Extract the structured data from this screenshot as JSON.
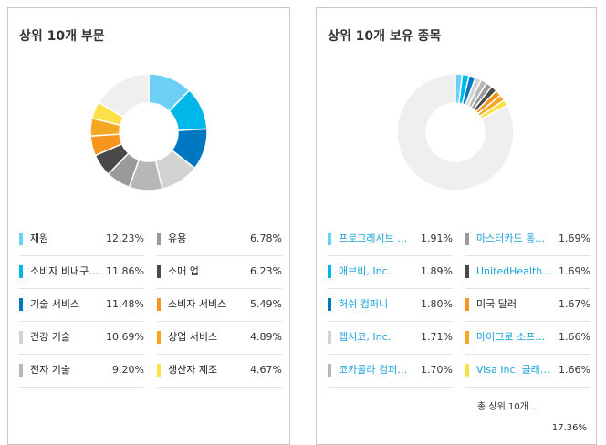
{
  "sectors": {
    "title": "상위 10개 부문",
    "chart_data": {
      "type": "pie",
      "categories": [
        "재원",
        "소비자 비내구재",
        "기술 서비스",
        "건강 기술",
        "전자 기술",
        "유용",
        "소매 업",
        "소비자 서비스",
        "상업 서비스",
        "생산자 제조"
      ],
      "values": [
        12.23,
        11.86,
        11.48,
        10.69,
        9.2,
        6.78,
        6.23,
        5.49,
        4.89,
        4.67
      ],
      "remainder": 16.48
    },
    "colors": [
      "#6ccff6",
      "#00b7ea",
      "#0078c1",
      "#d3d3d3",
      "#b7b7b7",
      "#9a9a9a",
      "#4a4a4a",
      "#f7941d",
      "#f5a623",
      "#fde047"
    ],
    "rest_color": "#efefef",
    "items": [
      {
        "label": "재원",
        "value": "12.23%",
        "color": "#6ccff6"
      },
      {
        "label": "소비자 비내구…",
        "value": "11.86%",
        "color": "#00b7ea"
      },
      {
        "label": "기술 서비스",
        "value": "11.48%",
        "color": "#0078c1"
      },
      {
        "label": "건강 기술",
        "value": "10.69%",
        "color": "#d3d3d3"
      },
      {
        "label": "전자 기술",
        "value": "9.20%",
        "color": "#b7b7b7"
      },
      {
        "label": "유용",
        "value": "6.78%",
        "color": "#9a9a9a"
      },
      {
        "label": "소매 업",
        "value": "6.23%",
        "color": "#4a4a4a"
      },
      {
        "label": "소비자 서비스",
        "value": "5.49%",
        "color": "#f7941d"
      },
      {
        "label": "상업 서비스",
        "value": "4.89%",
        "color": "#f5a623"
      },
      {
        "label": "생산자 제조",
        "value": "4.67%",
        "color": "#fde047"
      }
    ]
  },
  "holdings": {
    "title": "상위 10개 보유 종목",
    "chart_data": {
      "type": "pie",
      "categories": [
        "프로그레시브 …",
        "애브비, Inc.",
        "허쉬 컴퍼니",
        "펩시코, Inc.",
        "코카콜라 컴퍼…",
        "마스터카드 통…",
        "UnitedHealth…",
        "미국 달러",
        "마이크로 소프…",
        "Visa Inc. 클래…"
      ],
      "values": [
        1.91,
        1.89,
        1.8,
        1.71,
        1.7,
        1.69,
        1.69,
        1.67,
        1.66,
        1.66
      ],
      "remainder": 82.64
    },
    "colors": [
      "#6ccff6",
      "#00b7ea",
      "#0078c1",
      "#d3d3d3",
      "#b7b7b7",
      "#9a9a9a",
      "#4a4a4a",
      "#f7941d",
      "#f5a623",
      "#fde047"
    ],
    "rest_color": "#efefef",
    "items": [
      {
        "label": "프로그레시브 …",
        "value": "1.91%",
        "color": "#6ccff6",
        "link": true
      },
      {
        "label": "애브비, Inc.",
        "value": "1.89%",
        "color": "#00b7ea",
        "link": true
      },
      {
        "label": "허쉬 컴퍼니",
        "value": "1.80%",
        "color": "#0078c1",
        "link": true
      },
      {
        "label": "펩시코, Inc.",
        "value": "1.71%",
        "color": "#d3d3d3",
        "link": true
      },
      {
        "label": "코카콜라 컴퍼…",
        "value": "1.70%",
        "color": "#b7b7b7",
        "link": true
      },
      {
        "label": "마스터카드 통…",
        "value": "1.69%",
        "color": "#9a9a9a",
        "link": true
      },
      {
        "label": "UnitedHealth…",
        "value": "1.69%",
        "color": "#4a4a4a",
        "link": true
      },
      {
        "label": "미국 달러",
        "value": "1.67%",
        "color": "#f7941d",
        "link": false
      },
      {
        "label": "마이크로 소프…",
        "value": "1.66%",
        "color": "#f5a623",
        "link": true
      },
      {
        "label": "Visa Inc. 클래…",
        "value": "1.66%",
        "color": "#fde047",
        "link": true
      }
    ],
    "total_label": "총 상위 10개 ...",
    "total_value": "17.36%"
  }
}
